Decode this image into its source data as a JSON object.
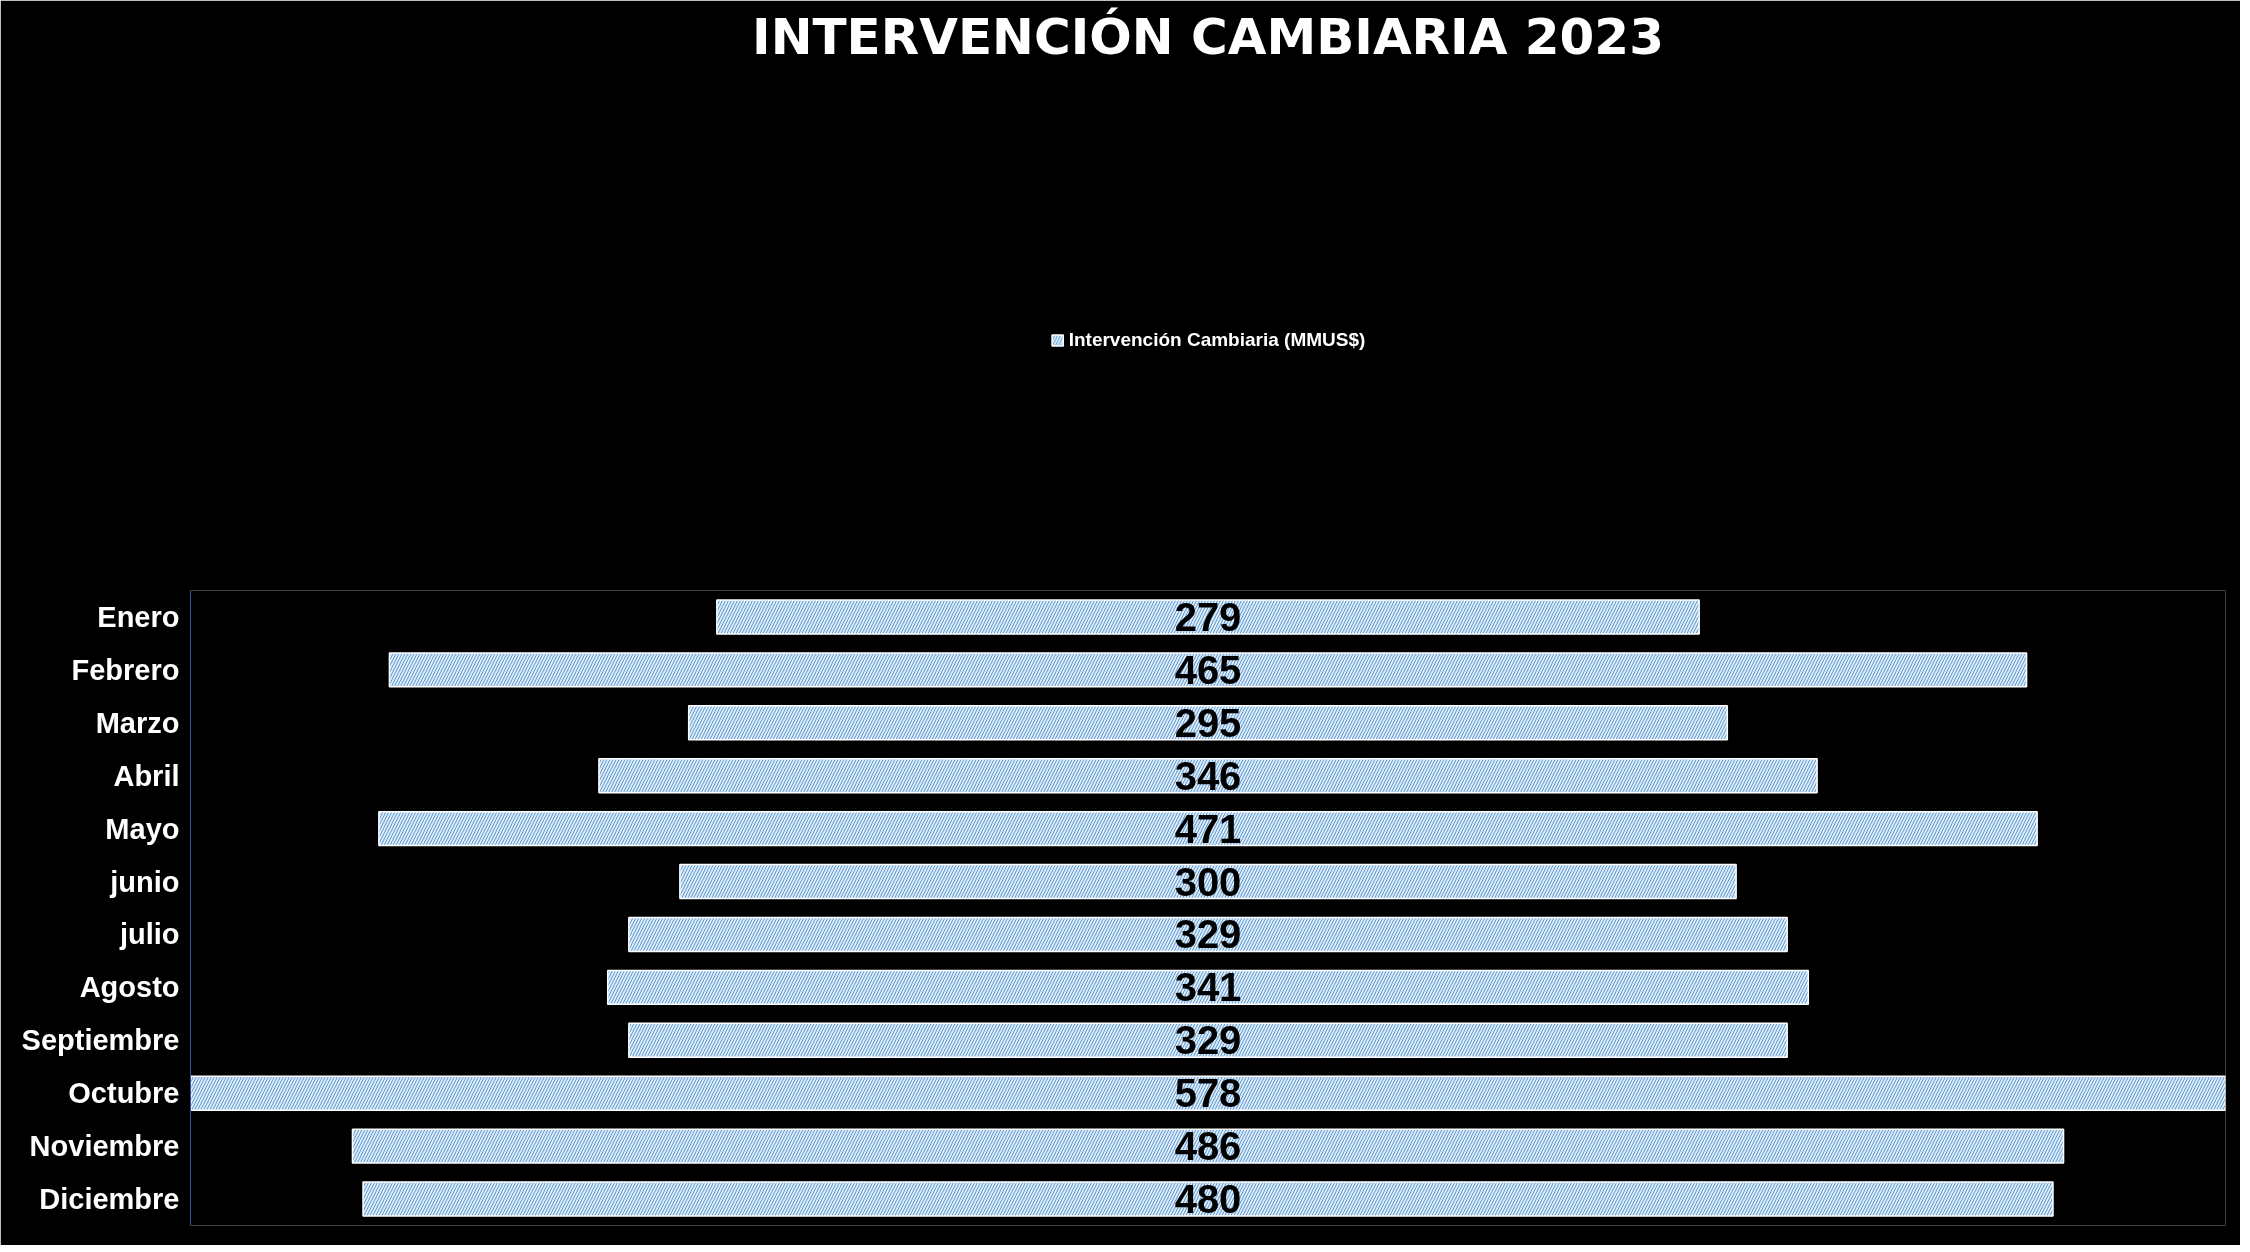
{
  "chart_data": {
    "type": "other",
    "title": "INTERVENCIÓN CAMBIARIA 2023",
    "categories": [
      "Enero",
      "Febrero",
      "Marzo",
      "Abril",
      "Mayo",
      "junio",
      "julio",
      "Agosto",
      "Septiembre",
      "Octubre",
      "Noviembre",
      "Diciembre"
    ],
    "series": [
      {
        "name": "Intervención Cambiaria (MMUS$)",
        "color": "#deebf7",
        "values": [
          279,
          465,
          295,
          346,
          471,
          300,
          329,
          341,
          329,
          578,
          486,
          480
        ]
      }
    ],
    "data_labels": true,
    "legend": "top"
  }
}
